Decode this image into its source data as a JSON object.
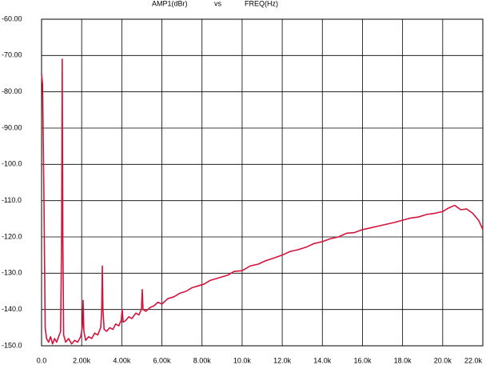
{
  "chart_data": {
    "type": "line",
    "title_parts": [
      "AMP1(dBr)",
      "vs",
      "FREQ(Hz)"
    ],
    "color": "#d4143c",
    "grid": true,
    "xlim": [
      0,
      22000
    ],
    "ylim": [
      -150,
      -60
    ],
    "xticks": [
      {
        "value": 0,
        "label": "0.0"
      },
      {
        "value": 2000,
        "label": "2.00k"
      },
      {
        "value": 4000,
        "label": "4.00k"
      },
      {
        "value": 6000,
        "label": "6.00k"
      },
      {
        "value": 8000,
        "label": "8.00k"
      },
      {
        "value": 10000,
        "label": "10.0k"
      },
      {
        "value": 12000,
        "label": "12.0k"
      },
      {
        "value": 14000,
        "label": "14.0k"
      },
      {
        "value": 16000,
        "label": "16.0k"
      },
      {
        "value": 18000,
        "label": "18.0k"
      },
      {
        "value": 20000,
        "label": "20.0k"
      },
      {
        "value": 22000,
        "label": "22.0k"
      }
    ],
    "yticks": [
      {
        "value": -60,
        "label": "-60.00"
      },
      {
        "value": -70,
        "label": "-70.00"
      },
      {
        "value": -80,
        "label": "-80.00"
      },
      {
        "value": -90,
        "label": "-90.00"
      },
      {
        "value": -100,
        "label": "-100.0"
      },
      {
        "value": -110,
        "label": "-110.0"
      },
      {
        "value": -120,
        "label": "-120.0"
      },
      {
        "value": -130,
        "label": "-130.0"
      },
      {
        "value": -140,
        "label": "-140.0"
      },
      {
        "value": -150,
        "label": "-150.0"
      }
    ],
    "x": [
      0,
      50,
      120,
      180,
      250,
      350,
      450,
      550,
      650,
      750,
      850,
      950,
      1000,
      1030,
      1060,
      1100,
      1200,
      1350,
      1500,
      1650,
      1800,
      1950,
      2030,
      2070,
      2110,
      2200,
      2350,
      2500,
      2650,
      2800,
      2950,
      3000,
      3030,
      3060,
      3120,
      3250,
      3400,
      3550,
      3700,
      3850,
      3970,
      4020,
      4070,
      4200,
      4350,
      4500,
      4700,
      4850,
      4980,
      5020,
      5060,
      5200,
      5400,
      5600,
      5800,
      6000,
      6300,
      6600,
      6900,
      7200,
      7500,
      7800,
      8100,
      8400,
      8700,
      9000,
      9300,
      9600,
      10000,
      10400,
      10800,
      11200,
      11600,
      12000,
      12400,
      12800,
      13200,
      13600,
      14000,
      14400,
      14800,
      15200,
      15600,
      16000,
      16400,
      16800,
      17200,
      17600,
      18000,
      18400,
      18800,
      19200,
      19600,
      20000,
      20300,
      20600,
      20900,
      21200,
      21500,
      21800,
      22000
    ],
    "values": [
      -75,
      -78,
      -110,
      -145,
      -148,
      -149,
      -147.5,
      -149.5,
      -148,
      -149,
      -147.5,
      -146,
      -120,
      -71,
      -120,
      -147,
      -149,
      -148,
      -149.5,
      -148.5,
      -149,
      -147.5,
      -145,
      -137.5,
      -146,
      -148.5,
      -147.5,
      -148,
      -146.5,
      -147,
      -145,
      -140,
      -128,
      -140,
      -145.5,
      -146,
      -145,
      -145.5,
      -144,
      -144.5,
      -143,
      -140,
      -143.5,
      -143,
      -142,
      -142.5,
      -141,
      -141.5,
      -140,
      -134.5,
      -140,
      -140.5,
      -139.5,
      -139,
      -138,
      -138.5,
      -137,
      -136.5,
      -135.5,
      -135,
      -134,
      -133.5,
      -133,
      -132,
      -131.5,
      -131,
      -130.5,
      -129.5,
      -129.3,
      -128,
      -127.5,
      -126.5,
      -125.8,
      -125,
      -124,
      -123.5,
      -122.8,
      -121.8,
      -121.3,
      -120.5,
      -120,
      -119,
      -118.8,
      -118,
      -117.5,
      -117,
      -116.5,
      -116,
      -115.4,
      -114.8,
      -114.5,
      -113.8,
      -113.5,
      -113,
      -112,
      -111.3,
      -112.5,
      -112.3,
      -113.5,
      -115.5,
      -118
    ]
  }
}
